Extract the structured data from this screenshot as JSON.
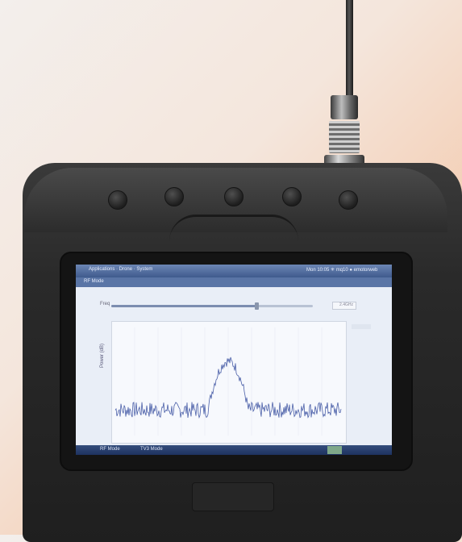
{
  "screen": {
    "title": "Applications · Drone · System",
    "title_right": "Mon 10:05 ✳ mq10 ● emotorweb",
    "window_label": "RF Mode",
    "control_label": "Freq",
    "control_value": "2.4GHz",
    "y_axis_label": "Power (dB)",
    "slider_level": 0.72,
    "taskbar": {
      "item1": "RF Mode",
      "item2": "TV3 Mode"
    }
  },
  "spectrum": {
    "description_type": "noise-floor-with-center-peak",
    "peak_position_fraction": 0.5,
    "peak_width_fraction": 0.18
  }
}
